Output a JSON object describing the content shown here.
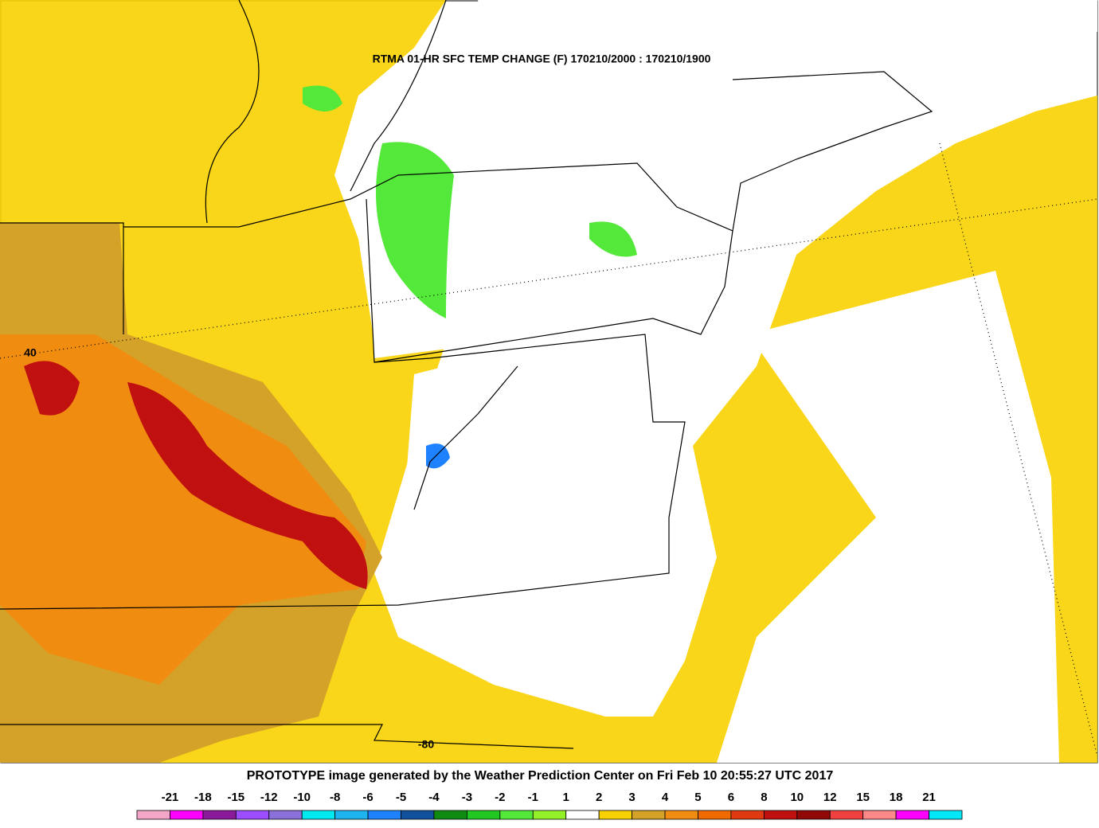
{
  "header": {
    "title": "RTMA 01-HR SFC TEMP CHANGE (F) 170210/2000 : 170210/1900"
  },
  "map": {
    "latitude_label": "40",
    "longitude_label": "-80"
  },
  "footer": {
    "credit": "PROTOTYPE image generated by the Weather Prediction Center on Fri Feb 10 20:55:27 UTC 2017"
  },
  "colorbar": {
    "labels": [
      -21,
      -18,
      -15,
      -12,
      -10,
      -8,
      -6,
      -5,
      -4,
      -3,
      -2,
      -1,
      1,
      2,
      3,
      4,
      5,
      6,
      8,
      10,
      12,
      15,
      18,
      21
    ],
    "colors": [
      "#f4a6c8",
      "#ff00ff",
      "#8b1a9a",
      "#9b4dff",
      "#8a70d8",
      "#00e8f0",
      "#1eb4f0",
      "#1e82ff",
      "#10509c",
      "#108a10",
      "#22c822",
      "#54e83a",
      "#94f028",
      "#ffffff",
      "#f8d200",
      "#d4a228",
      "#f08c10",
      "#f06a00",
      "#e03a10",
      "#c01010",
      "#900808",
      "#f04040",
      "#ff8888",
      "#ff00ff",
      "#00e8f8"
    ]
  }
}
